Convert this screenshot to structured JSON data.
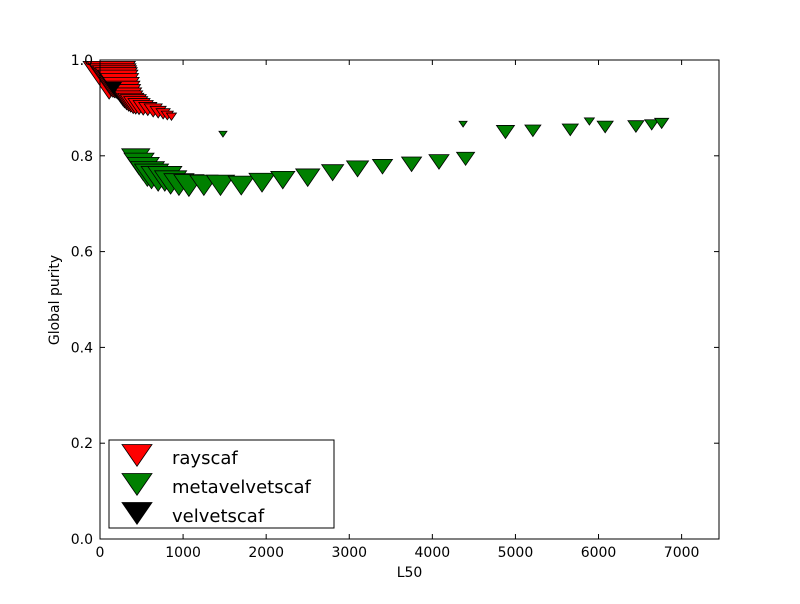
{
  "chart_data": {
    "type": "scatter",
    "title": "",
    "xlabel": "L50",
    "ylabel": "Global purity",
    "xlim": [
      0,
      7450
    ],
    "ylim": [
      0.0,
      1.0
    ],
    "xticks": [
      0,
      1000,
      2000,
      3000,
      4000,
      5000,
      6000,
      7000
    ],
    "yticks": [
      0.0,
      0.2,
      0.4,
      0.6,
      0.8,
      1.0
    ],
    "xtick_labels": [
      "0",
      "1000",
      "2000",
      "3000",
      "4000",
      "5000",
      "6000",
      "7000"
    ],
    "ytick_labels": [
      "0.0",
      "0.2",
      "0.4",
      "0.6",
      "0.8",
      "1.0"
    ],
    "grid": false,
    "legend_position": "lower-left",
    "marker": "triangle-down",
    "series": [
      {
        "name": "rayscaf",
        "color": "#ff0000",
        "points": [
          {
            "x": 110,
            "y": 0.97,
            "size": 26
          },
          {
            "x": 135,
            "y": 0.972,
            "size": 24
          },
          {
            "x": 155,
            "y": 0.968,
            "size": 23
          },
          {
            "x": 175,
            "y": 0.965,
            "size": 22
          },
          {
            "x": 195,
            "y": 0.962,
            "size": 21
          },
          {
            "x": 215,
            "y": 0.958,
            "size": 20
          },
          {
            "x": 235,
            "y": 0.952,
            "size": 19
          },
          {
            "x": 255,
            "y": 0.945,
            "size": 18
          },
          {
            "x": 275,
            "y": 0.938,
            "size": 17
          },
          {
            "x": 295,
            "y": 0.932,
            "size": 16
          },
          {
            "x": 320,
            "y": 0.926,
            "size": 15
          },
          {
            "x": 345,
            "y": 0.921,
            "size": 14
          },
          {
            "x": 370,
            "y": 0.917,
            "size": 13
          },
          {
            "x": 400,
            "y": 0.914,
            "size": 13
          },
          {
            "x": 430,
            "y": 0.911,
            "size": 12
          },
          {
            "x": 470,
            "y": 0.908,
            "size": 11
          },
          {
            "x": 520,
            "y": 0.905,
            "size": 10
          },
          {
            "x": 575,
            "y": 0.902,
            "size": 9
          },
          {
            "x": 640,
            "y": 0.899,
            "size": 9
          },
          {
            "x": 700,
            "y": 0.895,
            "size": 8
          },
          {
            "x": 760,
            "y": 0.891,
            "size": 7
          },
          {
            "x": 810,
            "y": 0.887,
            "size": 6
          },
          {
            "x": 860,
            "y": 0.884,
            "size": 5
          }
        ]
      },
      {
        "name": "metavelvetscaf",
        "color": "#008000",
        "points": [
          {
            "x": 430,
            "y": 0.8,
            "size": 14
          },
          {
            "x": 470,
            "y": 0.79,
            "size": 15
          },
          {
            "x": 520,
            "y": 0.78,
            "size": 16
          },
          {
            "x": 570,
            "y": 0.77,
            "size": 17
          },
          {
            "x": 620,
            "y": 0.765,
            "size": 17
          },
          {
            "x": 700,
            "y": 0.76,
            "size": 17
          },
          {
            "x": 780,
            "y": 0.76,
            "size": 17
          },
          {
            "x": 850,
            "y": 0.752,
            "size": 16
          },
          {
            "x": 950,
            "y": 0.747,
            "size": 15
          },
          {
            "x": 1070,
            "y": 0.745,
            "size": 15
          },
          {
            "x": 1250,
            "y": 0.745,
            "size": 14
          },
          {
            "x": 1450,
            "y": 0.745,
            "size": 14
          },
          {
            "x": 1700,
            "y": 0.744,
            "size": 13
          },
          {
            "x": 1950,
            "y": 0.75,
            "size": 13
          },
          {
            "x": 2200,
            "y": 0.755,
            "size": 12
          },
          {
            "x": 2500,
            "y": 0.76,
            "size": 12
          },
          {
            "x": 2800,
            "y": 0.77,
            "size": 11
          },
          {
            "x": 3100,
            "y": 0.778,
            "size": 11
          },
          {
            "x": 3400,
            "y": 0.782,
            "size": 10
          },
          {
            "x": 3750,
            "y": 0.787,
            "size": 10
          },
          {
            "x": 4080,
            "y": 0.792,
            "size": 10
          },
          {
            "x": 4400,
            "y": 0.798,
            "size": 9
          },
          {
            "x": 4880,
            "y": 0.854,
            "size": 9
          },
          {
            "x": 5210,
            "y": 0.856,
            "size": 8
          },
          {
            "x": 5660,
            "y": 0.858,
            "size": 8
          },
          {
            "x": 6080,
            "y": 0.864,
            "size": 8
          },
          {
            "x": 6450,
            "y": 0.865,
            "size": 8
          },
          {
            "x": 6640,
            "y": 0.868,
            "size": 7
          },
          {
            "x": 6760,
            "y": 0.871,
            "size": 7
          },
          {
            "x": 5890,
            "y": 0.874,
            "size": 5
          },
          {
            "x": 4370,
            "y": 0.868,
            "size": 4
          },
          {
            "x": 1480,
            "y": 0.847,
            "size": 4
          }
        ]
      },
      {
        "name": "velvetscaf",
        "color": "#000000",
        "points": [
          {
            "x": 160,
            "y": 0.945,
            "size": 8
          }
        ]
      }
    ]
  }
}
